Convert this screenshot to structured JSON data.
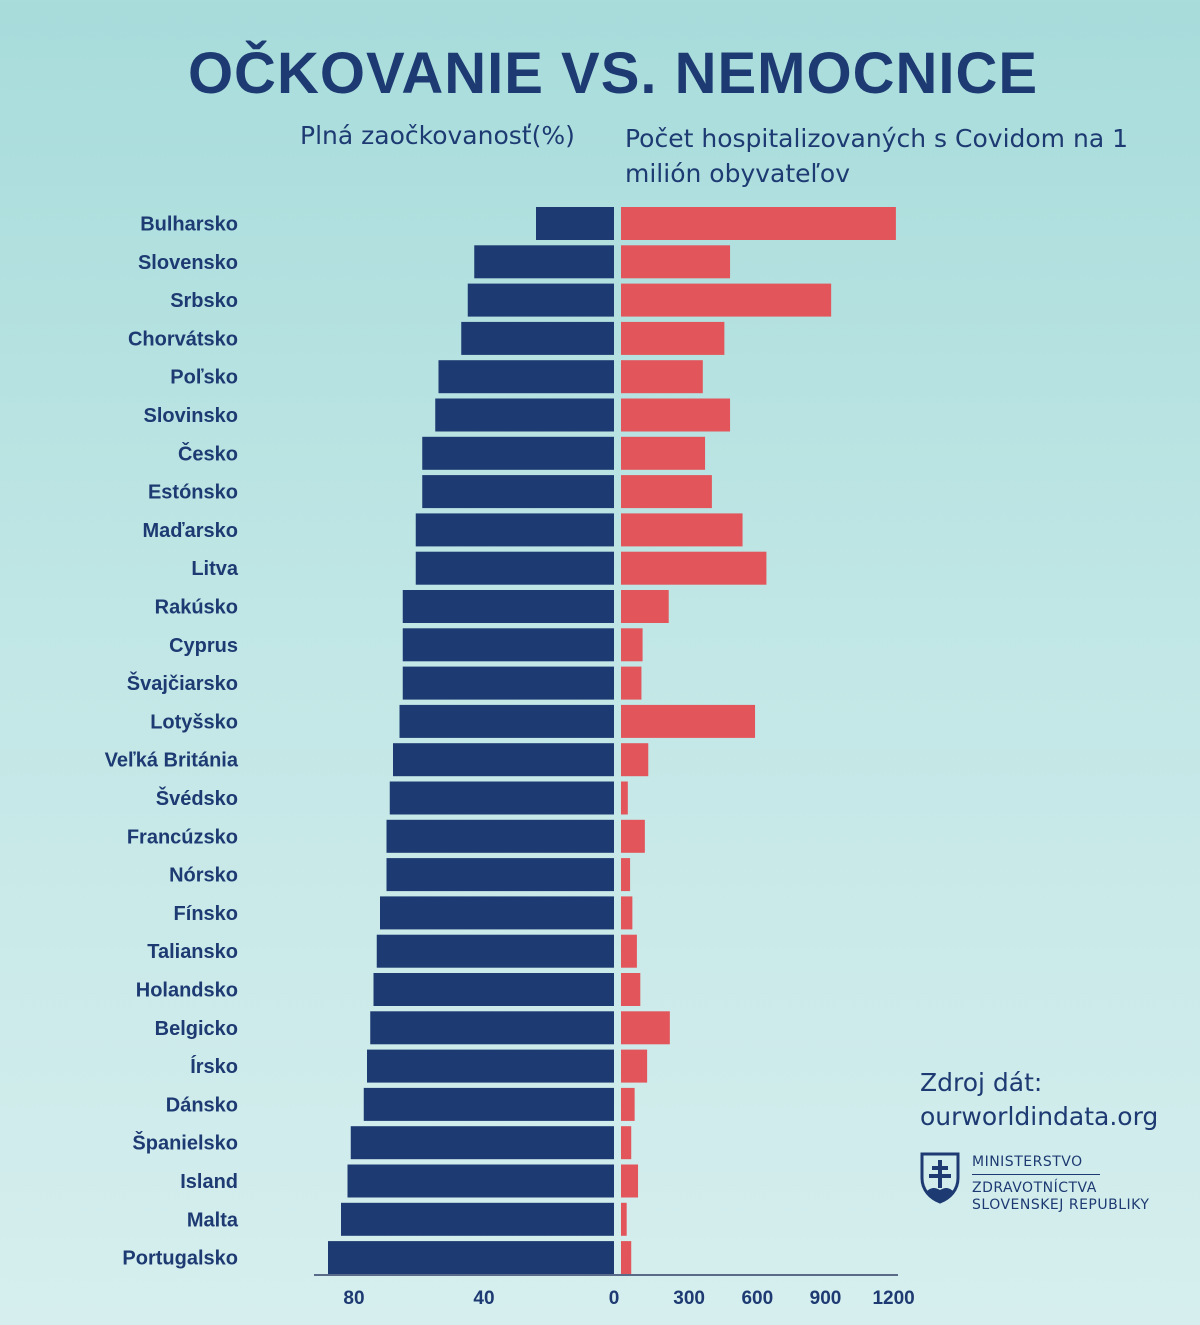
{
  "title": "OČKOVANIE VS. NEMOCNICE",
  "subtitle_left": "Plná zaočkovanosť(%)",
  "subtitle_right": "Počet hospitalizovaných s Covidom na 1 milión obyvateľov",
  "source": {
    "label": "Zdroj dát:",
    "url": "ourworldindata.org"
  },
  "ministry": {
    "line1": "MINISTERSTVO",
    "line2": "ZDRAVOTNÍCTVA",
    "line3": "SLOVENSKEJ REPUBLIKY"
  },
  "colors": {
    "vaccination": "#1d3a72",
    "hospital": "#e2565b",
    "text": "#1d3a72"
  },
  "chart_data": {
    "type": "bar",
    "orientation": "horizontal-diverging",
    "categories": [
      "Bulharsko",
      "Slovensko",
      "Srbsko",
      "Chorvátsko",
      "Poľsko",
      "Slovinsko",
      "Česko",
      "Estónsko",
      "Maďarsko",
      "Litva",
      "Rakúsko",
      "Cyprus",
      "Švajčiarsko",
      "Lotyšsko",
      "Veľká Británia",
      "Švédsko",
      "Francúzsko",
      "Nórsko",
      "Fínsko",
      "Taliansko",
      "Holandsko",
      "Belgicko",
      "Írsko",
      "Dánsko",
      "Španielsko",
      "Island",
      "Malta",
      "Portugalsko"
    ],
    "series": [
      {
        "name": "Plná zaočkovanosť(%)",
        "side": "left",
        "values": [
          24,
          43,
          45,
          47,
          54,
          55,
          59,
          59,
          61,
          61,
          65,
          65,
          65,
          66,
          68,
          69,
          70,
          70,
          72,
          73,
          74,
          75,
          76,
          77,
          81,
          82,
          84,
          88
        ]
      },
      {
        "name": "Počet hospitalizovaných s Covidom na 1 milión obyvateľov",
        "side": "right",
        "values": [
          1210,
          480,
          925,
          455,
          360,
          480,
          370,
          400,
          535,
          640,
          210,
          95,
          90,
          590,
          120,
          30,
          105,
          40,
          50,
          70,
          85,
          215,
          115,
          60,
          45,
          75,
          25,
          45
        ]
      }
    ],
    "left_axis": {
      "ticks": [
        80,
        40,
        0
      ],
      "range": [
        0,
        88
      ]
    },
    "right_axis": {
      "ticks": [
        300,
        600,
        900,
        1200
      ],
      "range": [
        0,
        1210
      ]
    }
  }
}
